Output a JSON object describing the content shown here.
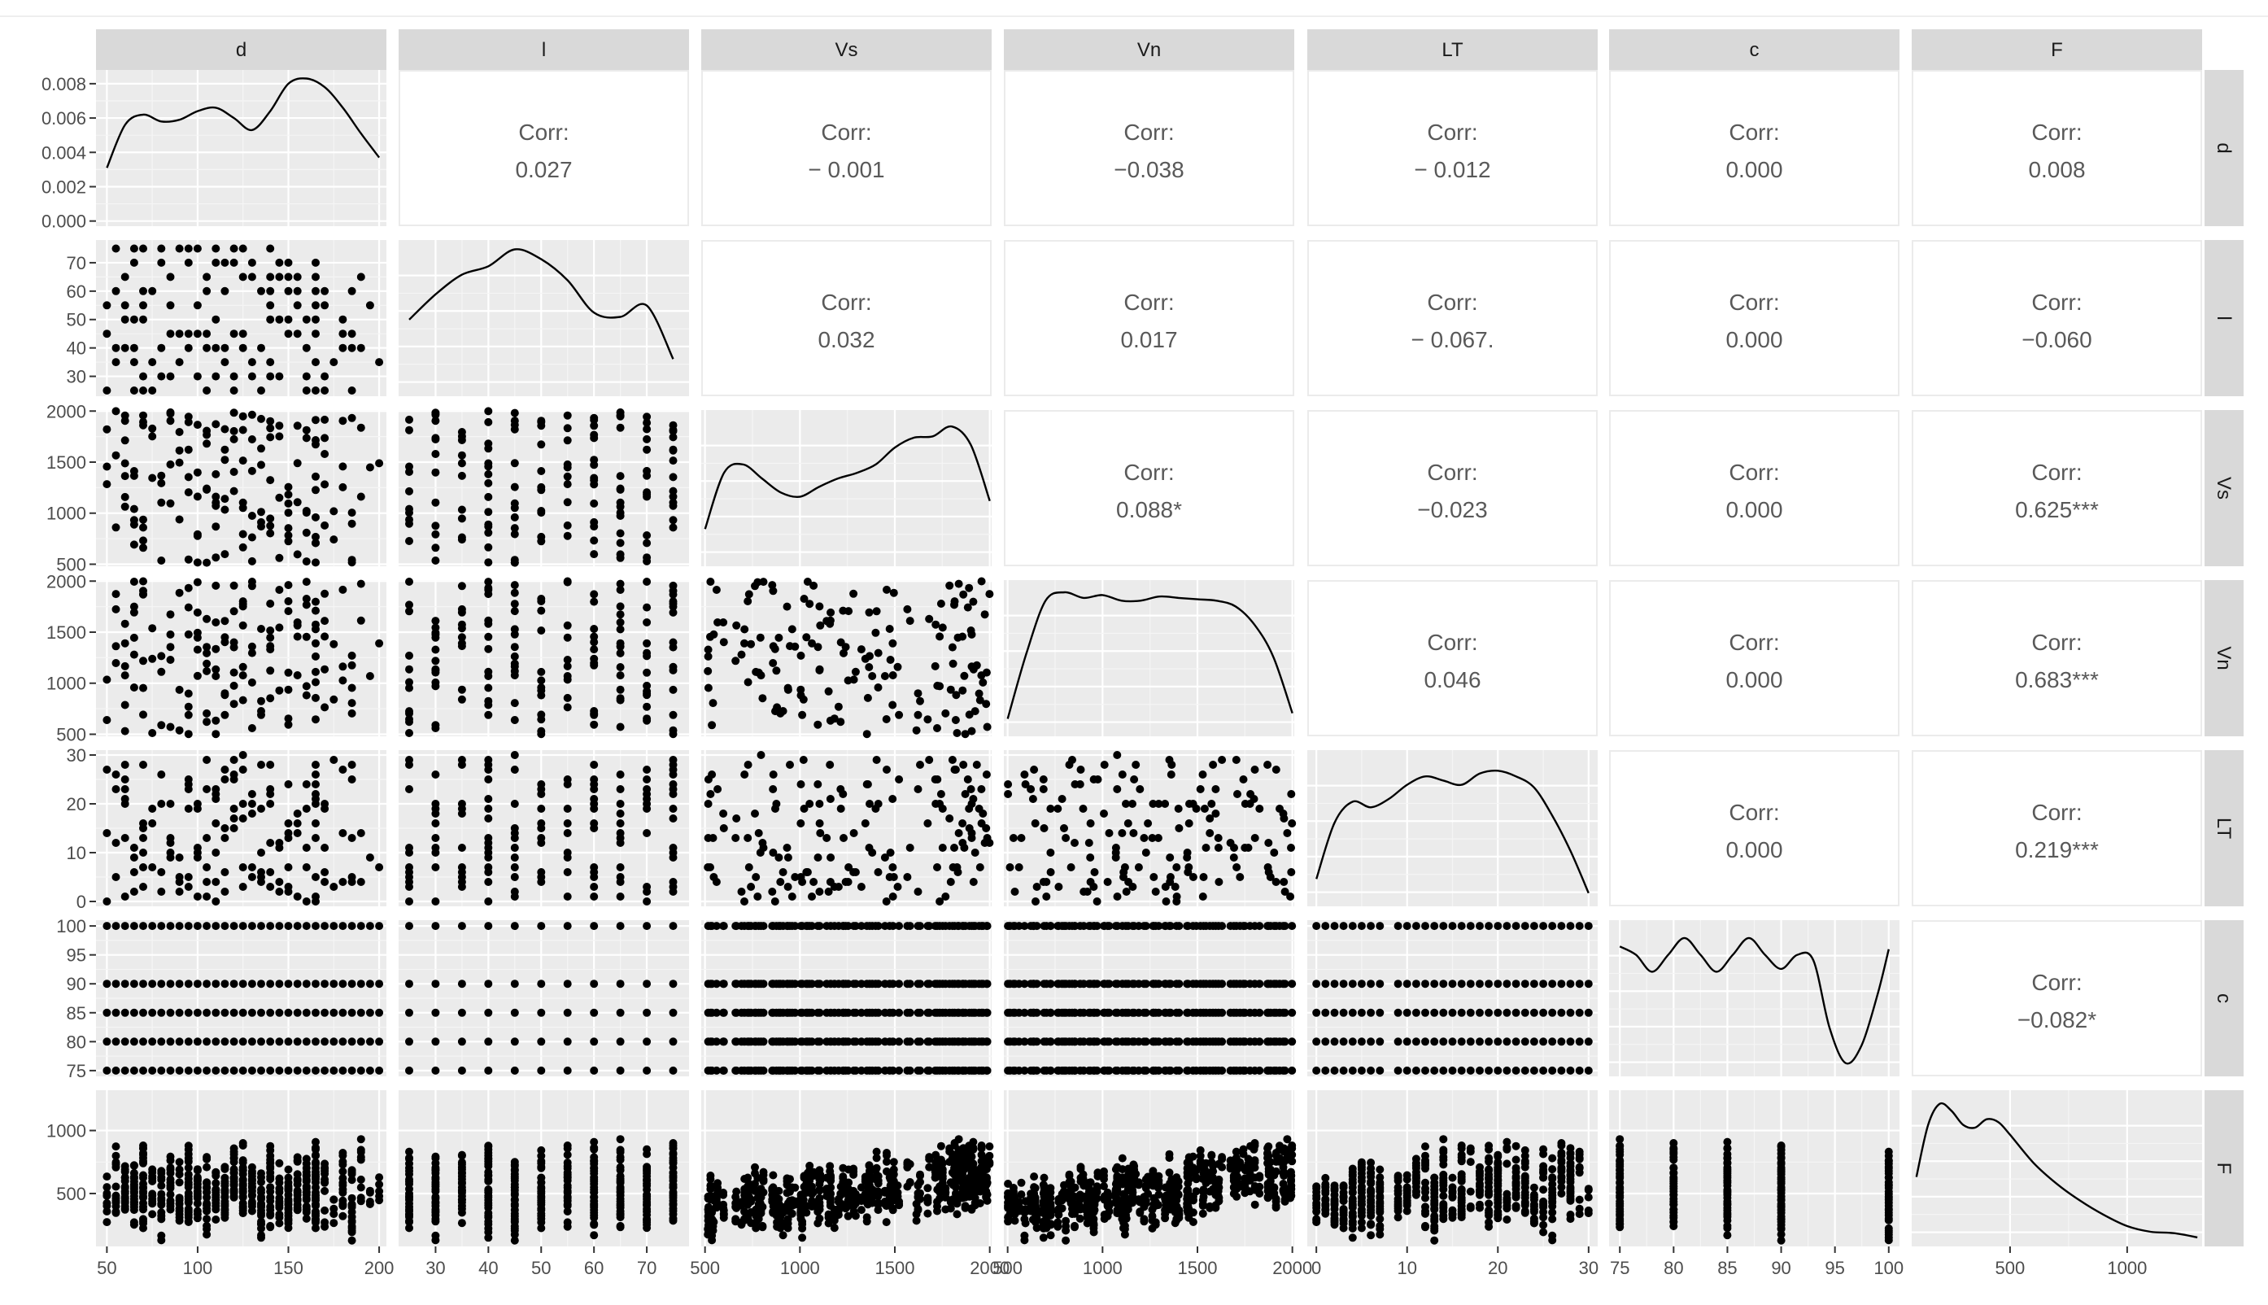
{
  "chart_data": {
    "type": "scatter",
    "subtype": "pairs-matrix",
    "variables": [
      "d",
      "l",
      "Vs",
      "Vn",
      "LT",
      "c",
      "F"
    ],
    "strip_labels": [
      "d",
      "l",
      "Vs",
      "Vn",
      "LT",
      "c",
      "F"
    ],
    "corr_label": "Corr:",
    "ranges": {
      "d": [
        44,
        204
      ],
      "l": [
        23,
        78
      ],
      "Vs": [
        480,
        2010
      ],
      "Vn": [
        480,
        2010
      ],
      "LT": [
        -1,
        31
      ],
      "c": [
        74,
        101
      ],
      "F": [
        80,
        1320
      ]
    },
    "ticks": {
      "d": [
        50,
        100,
        150,
        200
      ],
      "l": [
        30,
        40,
        50,
        60,
        70
      ],
      "Vs": [
        500,
        1000,
        1500,
        2000
      ],
      "Vn": [
        500,
        1000,
        1500,
        2000
      ],
      "LT": [
        0,
        10,
        20,
        30
      ],
      "c": [
        75,
        80,
        85,
        90,
        95,
        100
      ],
      "F": [
        500,
        1000
      ]
    },
    "x_tick_labels": {
      "d": [
        "50",
        "100",
        "150",
        "200"
      ],
      "l": [
        "30",
        "40",
        "50",
        "60",
        "70"
      ],
      "Vs": [
        "500",
        "1000",
        "1500",
        "2000"
      ],
      "Vn": [
        "500",
        "1000",
        "1500",
        "2000"
      ],
      "LT": [
        "0",
        "10",
        "20",
        "30"
      ],
      "c": [
        "75",
        "80",
        "85",
        "90",
        "95",
        "100"
      ],
      "F": [
        "500",
        "1000"
      ]
    },
    "y_tick_labels": {
      "d": [
        "0.008",
        "0.006",
        "0.004",
        "0.002",
        "0.000"
      ],
      "l": [
        "70",
        "60",
        "50",
        "40",
        "30"
      ],
      "Vs": [
        "2000",
        "1500",
        "1000",
        "500"
      ],
      "Vn": [
        "2000",
        "1500",
        "1000",
        "500"
      ],
      "LT": [
        "30",
        "20",
        "10",
        "0"
      ],
      "c": [
        "100",
        "95",
        "90",
        "85",
        "80",
        "75"
      ],
      "F": [
        "1000",
        "500"
      ]
    },
    "density_d": {
      "ticks": [
        0.0,
        0.002,
        0.004,
        0.006,
        0.008
      ],
      "ylim": [
        -0.0003,
        0.0088
      ],
      "x": [
        50,
        60,
        70,
        80,
        90,
        100,
        110,
        120,
        130,
        140,
        150,
        160,
        170,
        180,
        190,
        200
      ],
      "y": [
        0.0031,
        0.0056,
        0.0062,
        0.0058,
        0.0059,
        0.0064,
        0.0066,
        0.006,
        0.0053,
        0.0064,
        0.008,
        0.0083,
        0.0078,
        0.0066,
        0.0051,
        0.0037
      ]
    },
    "density_curves": {
      "l": {
        "x": [
          25,
          30,
          35,
          40,
          45,
          50,
          55,
          60,
          65,
          70,
          75
        ],
        "y": [
          0.5,
          0.68,
          0.82,
          0.88,
          1.0,
          0.93,
          0.78,
          0.55,
          0.52,
          0.6,
          0.22
        ]
      },
      "Vs": {
        "x": [
          500,
          600,
          700,
          800,
          900,
          1000,
          1100,
          1200,
          1300,
          1400,
          1500,
          1600,
          1700,
          1800,
          1900,
          2000
        ],
        "y": [
          0.22,
          0.62,
          0.68,
          0.58,
          0.48,
          0.45,
          0.52,
          0.58,
          0.62,
          0.68,
          0.8,
          0.87,
          0.88,
          0.95,
          0.82,
          0.42
        ]
      },
      "Vn": {
        "x": [
          500,
          600,
          700,
          800,
          900,
          1000,
          1100,
          1200,
          1300,
          1400,
          1500,
          1600,
          1700,
          1800,
          1900,
          2000
        ],
        "y": [
          0.08,
          0.55,
          0.92,
          0.98,
          0.94,
          0.96,
          0.92,
          0.92,
          0.95,
          0.94,
          0.93,
          0.92,
          0.88,
          0.75,
          0.52,
          0.12
        ]
      },
      "LT": {
        "x": [
          0,
          2,
          4,
          6,
          8,
          10,
          12,
          14,
          16,
          18,
          20,
          22,
          24,
          26,
          28,
          30
        ],
        "y": [
          0.15,
          0.55,
          0.7,
          0.66,
          0.72,
          0.82,
          0.88,
          0.85,
          0.82,
          0.9,
          0.92,
          0.88,
          0.8,
          0.6,
          0.35,
          0.05
        ]
      },
      "c": {
        "x": [
          75,
          76.5,
          78,
          79.5,
          81,
          82.5,
          84,
          85.5,
          87,
          88.5,
          90,
          91.5,
          93,
          94.5,
          96,
          97.5,
          99,
          100
        ],
        "y": [
          0.88,
          0.82,
          0.7,
          0.82,
          0.94,
          0.82,
          0.7,
          0.82,
          0.94,
          0.82,
          0.72,
          0.82,
          0.78,
          0.3,
          0.05,
          0.18,
          0.55,
          0.86
        ]
      },
      "F": {
        "x": [
          100,
          150,
          200,
          250,
          300,
          350,
          400,
          450,
          500,
          600,
          700,
          800,
          900,
          1000,
          1100,
          1200,
          1300
        ],
        "y": [
          0.45,
          0.82,
          0.97,
          0.92,
          0.82,
          0.8,
          0.86,
          0.84,
          0.75,
          0.55,
          0.4,
          0.28,
          0.18,
          0.1,
          0.06,
          0.05,
          0.02
        ]
      }
    },
    "correlations": [
      {
        "row": "d",
        "col": "l",
        "value": "0.027"
      },
      {
        "row": "d",
        "col": "Vs",
        "value": "− 0.001"
      },
      {
        "row": "d",
        "col": "Vn",
        "value": "−0.038"
      },
      {
        "row": "d",
        "col": "LT",
        "value": "− 0.012"
      },
      {
        "row": "d",
        "col": "c",
        "value": "0.000"
      },
      {
        "row": "d",
        "col": "F",
        "value": "0.008"
      },
      {
        "row": "l",
        "col": "Vs",
        "value": "0.032"
      },
      {
        "row": "l",
        "col": "Vn",
        "value": "0.017"
      },
      {
        "row": "l",
        "col": "LT",
        "value": "− 0.067."
      },
      {
        "row": "l",
        "col": "c",
        "value": "0.000"
      },
      {
        "row": "l",
        "col": "F",
        "value": "−0.060"
      },
      {
        "row": "Vs",
        "col": "Vn",
        "value": "0.088*"
      },
      {
        "row": "Vs",
        "col": "LT",
        "value": "−0.023"
      },
      {
        "row": "Vs",
        "col": "c",
        "value": "0.000"
      },
      {
        "row": "Vs",
        "col": "F",
        "value": "0.625***"
      },
      {
        "row": "Vn",
        "col": "LT",
        "value": "0.046"
      },
      {
        "row": "Vn",
        "col": "c",
        "value": "0.000"
      },
      {
        "row": "Vn",
        "col": "F",
        "value": "0.683***"
      },
      {
        "row": "LT",
        "col": "c",
        "value": "0.000"
      },
      {
        "row": "LT",
        "col": "F",
        "value": "0.219***"
      },
      {
        "row": "c",
        "col": "F",
        "value": "−0.082*"
      }
    ],
    "grid": true,
    "legend": "none"
  }
}
